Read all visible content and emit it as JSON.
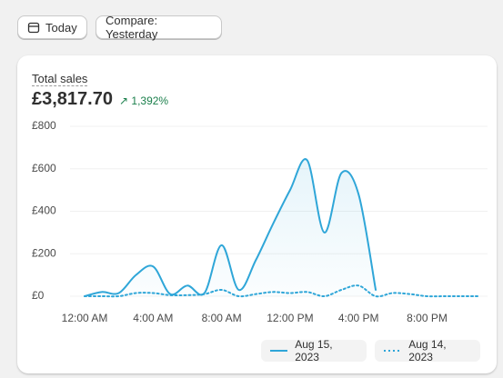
{
  "toolbar": {
    "date_button": "Today",
    "compare_button": "Compare: Yesterday"
  },
  "card": {
    "metric_label": "Total sales",
    "metric_value": "£3,817.70",
    "change": "1,392%"
  },
  "chart_data": {
    "type": "line",
    "categories": [
      "12:00 AM",
      null,
      null,
      null,
      "4:00 AM",
      null,
      null,
      null,
      "8:00 AM",
      null,
      null,
      null,
      "12:00 PM",
      null,
      null,
      null,
      "4:00 PM",
      null,
      null,
      null,
      "8:00 PM",
      null,
      null,
      null
    ],
    "series": [
      {
        "name": "Aug 15, 2023",
        "color": "#2fa6d8",
        "style": "solid",
        "values": [
          0,
          20,
          15,
          100,
          140,
          10,
          50,
          15,
          240,
          30,
          170,
          340,
          500,
          640,
          300,
          580,
          480,
          30,
          null,
          null,
          null,
          null,
          null,
          null
        ]
      },
      {
        "name": "Aug 14, 2023",
        "color": "#2fa6d8",
        "style": "dotted",
        "values": [
          0,
          0,
          0,
          15,
          15,
          5,
          5,
          10,
          30,
          0,
          10,
          20,
          15,
          20,
          0,
          30,
          50,
          0,
          15,
          10,
          0,
          0,
          0,
          0
        ]
      }
    ],
    "ylim": [
      0,
      800
    ],
    "yticks": [
      {
        "value": 0,
        "label": "£0"
      },
      {
        "value": 200,
        "label": "£200"
      },
      {
        "value": 400,
        "label": "£400"
      },
      {
        "value": 600,
        "label": "£600"
      },
      {
        "value": 800,
        "label": "£800"
      }
    ],
    "grid": true
  }
}
